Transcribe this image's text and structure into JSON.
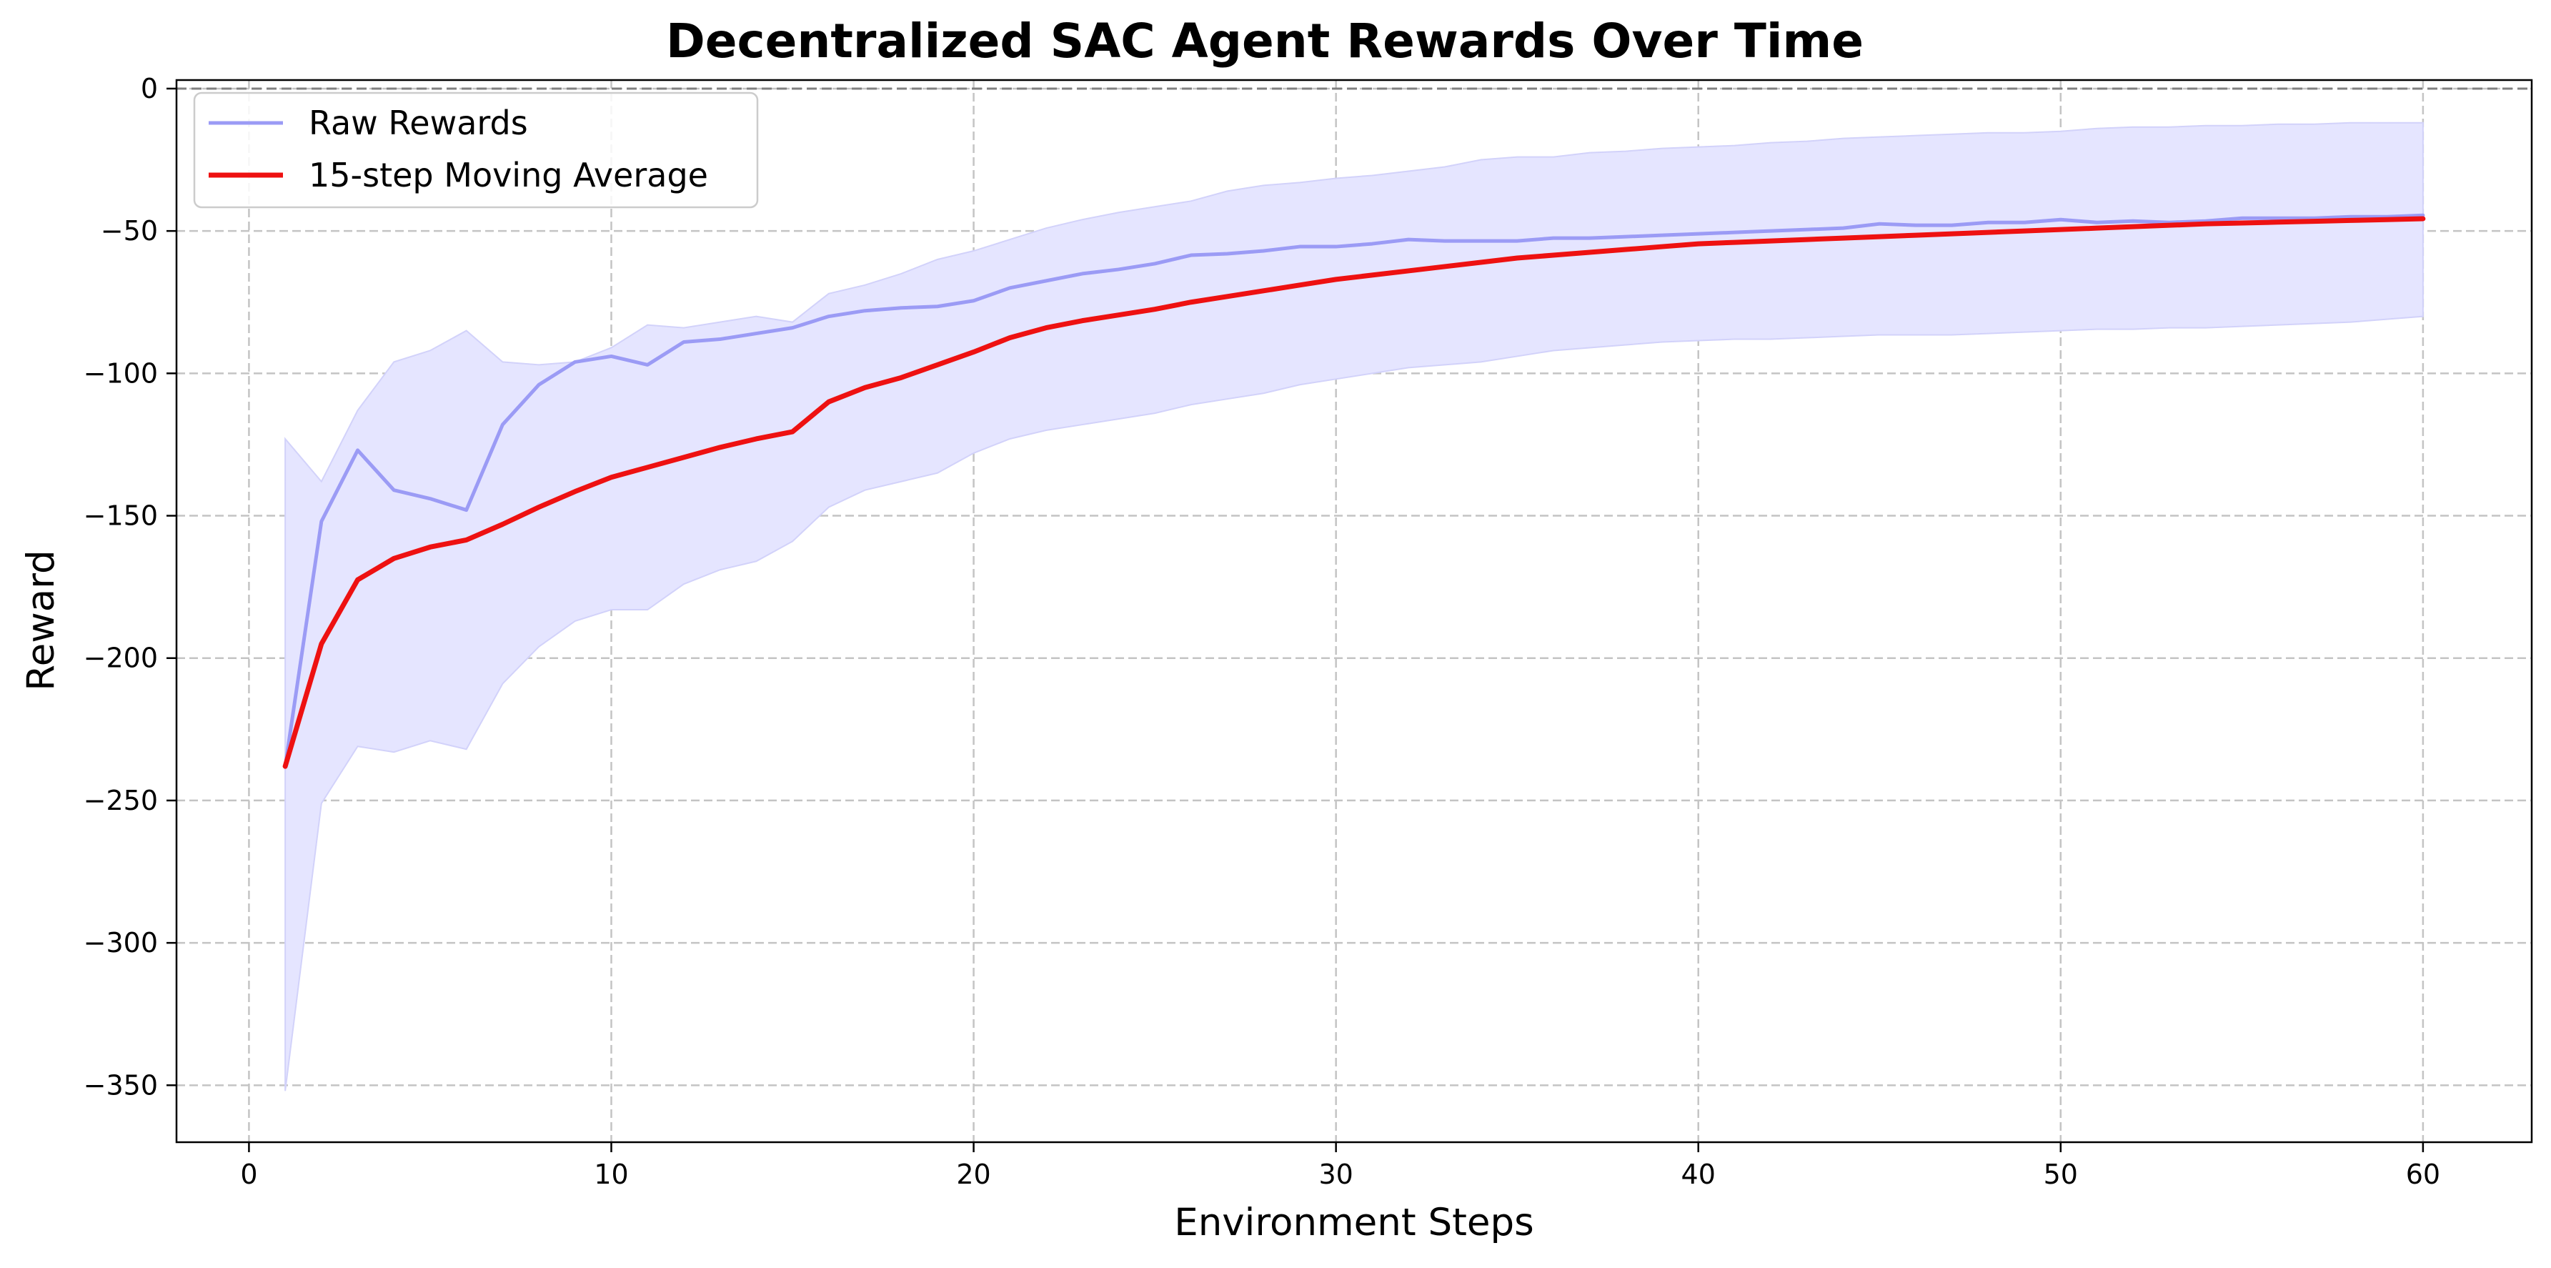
{
  "chart_data": {
    "type": "line",
    "title": "Decentralized SAC Agent Rewards Over Time",
    "xlabel": "Environment Steps",
    "ylabel": "Reward",
    "xlim": [
      -2,
      63
    ],
    "ylim": [
      -370,
      3
    ],
    "xticks": [
      0,
      10,
      20,
      30,
      40,
      50,
      60
    ],
    "yticks": [
      0,
      -50,
      -100,
      -150,
      -200,
      -250,
      -300,
      -350
    ],
    "grid": true,
    "legend_position": "top-left",
    "reference_line": {
      "y": 0,
      "style": "dashed",
      "color": "#808080"
    },
    "x": [
      1,
      2,
      3,
      4,
      5,
      6,
      7,
      8,
      9,
      10,
      11,
      12,
      13,
      14,
      15,
      16,
      17,
      18,
      19,
      20,
      21,
      22,
      23,
      24,
      25,
      26,
      27,
      28,
      29,
      30,
      31,
      32,
      33,
      34,
      35,
      36,
      37,
      38,
      39,
      40,
      41,
      42,
      43,
      44,
      45,
      46,
      47,
      48,
      49,
      50,
      51,
      52,
      53,
      54,
      55,
      56,
      57,
      58,
      59,
      60
    ],
    "series": [
      {
        "name": "Raw Rewards",
        "color": "#9b9bf5",
        "values": [
          -238,
          -152,
          -127,
          -141,
          -144,
          -148,
          -118,
          -104,
          -96,
          -94,
          -97,
          -89,
          -88,
          -86,
          -84,
          -80,
          -78,
          -77,
          -76.5,
          -74.5,
          -70,
          -67.5,
          -65,
          -63.5,
          -61.5,
          -58.5,
          -58,
          -57,
          -55.5,
          -55.5,
          -54.5,
          -53,
          -53.5,
          -53.5,
          -53.5,
          -52.5,
          -52.5,
          -52,
          -51.5,
          -51,
          -50.5,
          -50,
          -49.5,
          -49,
          -47.5,
          -48,
          -48,
          -47,
          -47,
          -46,
          -47,
          -46.5,
          -47,
          -46.5,
          -45.5,
          -45.5,
          -45.5,
          -45,
          -45,
          -44.5
        ]
      },
      {
        "name": "15-step Moving Average",
        "color": "#ee1111",
        "values": [
          -238,
          -195,
          -172.5,
          -165,
          -161,
          -158.5,
          -153,
          -147,
          -141.5,
          -136.5,
          -133,
          -129.5,
          -126,
          -123,
          -120.5,
          -110,
          -105,
          -101.5,
          -97,
          -92.5,
          -87.5,
          -84,
          -81.5,
          -79.5,
          -77.5,
          -75,
          -73,
          -71,
          -69,
          -67,
          -65.5,
          -64,
          -62.5,
          -61,
          -59.5,
          -58.5,
          -57.5,
          -56.5,
          -55.5,
          -54.5,
          -54,
          -53.5,
          -53,
          -52.5,
          -52,
          -51.5,
          -51,
          -50.5,
          -50,
          -49.5,
          -49,
          -48.5,
          -48,
          -47.5,
          -47.2,
          -46.9,
          -46.6,
          -46.3,
          -46,
          -45.7
        ]
      }
    ],
    "band": {
      "color": "#e5e5ff",
      "upper": [
        -123,
        -138,
        -113,
        -96,
        -92,
        -85,
        -96,
        -97,
        -96,
        -91,
        -83,
        -84,
        -82,
        -80,
        -82,
        -72,
        -69,
        -65,
        -60,
        -57,
        -53,
        -49,
        -46,
        -43.5,
        -41.5,
        -39.5,
        -36,
        -34,
        -33,
        -31.5,
        -30.5,
        -29,
        -27.5,
        -25,
        -24,
        -24,
        -22.5,
        -22,
        -21,
        -20.5,
        -20,
        -19,
        -18.5,
        -17.5,
        -17,
        -16.5,
        -16,
        -15.5,
        -15.5,
        -15,
        -14,
        -13.5,
        -13.5,
        -13,
        -13,
        -12.5,
        -12.5,
        -12,
        -12,
        -12
      ],
      "lower": [
        -352,
        -251,
        -231,
        -233,
        -229,
        -232,
        -209,
        -196,
        -187,
        -183,
        -183,
        -174,
        -169,
        -166,
        -159,
        -147,
        -141,
        -138,
        -135,
        -128,
        -123,
        -120,
        -118,
        -116,
        -114,
        -111,
        -109,
        -107,
        -104,
        -102,
        -100,
        -98,
        -97,
        -96,
        -94,
        -92,
        -91,
        -90,
        -89,
        -88.5,
        -88,
        -88,
        -87.5,
        -87,
        -86.5,
        -86.5,
        -86.5,
        -86,
        -85.5,
        -85,
        -84.5,
        -84.5,
        -84,
        -84,
        -83.5,
        -83,
        -82.5,
        -82,
        -81,
        -80
      ]
    }
  }
}
